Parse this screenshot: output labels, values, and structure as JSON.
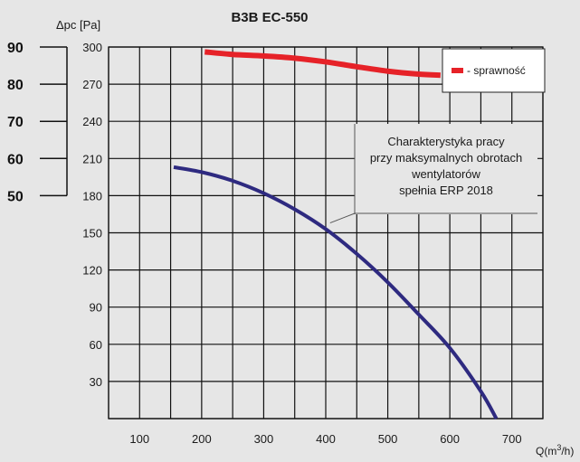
{
  "chart_data": {
    "type": "line",
    "title": "B3B EC-550",
    "ylabel": "Δpc [Pa]",
    "xlabel": "Q(m³/h)",
    "x_ticks": [
      100,
      200,
      300,
      400,
      500,
      600,
      700
    ],
    "y_ticks": [
      30,
      60,
      90,
      120,
      150,
      180,
      210,
      240,
      270,
      300
    ],
    "xlim": [
      50,
      750
    ],
    "ylim": [
      0,
      300
    ],
    "grid": true,
    "secondary_axis": {
      "ticks": [
        50,
        60,
        70,
        80,
        90
      ],
      "range": [
        50,
        90
      ],
      "maps_to_primary": [
        180,
        300
      ]
    },
    "series": [
      {
        "role": "pressure_curve",
        "color": "#2e2a80",
        "axis": "primary",
        "points": [
          [
            155,
            203
          ],
          [
            200,
            199
          ],
          [
            250,
            192
          ],
          [
            300,
            182
          ],
          [
            350,
            169
          ],
          [
            400,
            153
          ],
          [
            450,
            133
          ],
          [
            500,
            110
          ],
          [
            550,
            84
          ],
          [
            600,
            57
          ],
          [
            650,
            22
          ],
          [
            675,
            0
          ]
        ]
      },
      {
        "name": "- sprawność",
        "color": "#e62228",
        "axis": "secondary",
        "points": [
          [
            205,
            88.7
          ],
          [
            250,
            88
          ],
          [
            300,
            87.6
          ],
          [
            350,
            87
          ],
          [
            400,
            86
          ],
          [
            450,
            84.7
          ],
          [
            500,
            83.5
          ],
          [
            550,
            82.7
          ],
          [
            585,
            82.4
          ]
        ]
      }
    ],
    "annotation": {
      "text": [
        "Charakterystyka pracy",
        "przy maksymalnych obrotach",
        "wentylatorów",
        "spełnia ERP 2018"
      ],
      "points_to": [
        407,
        158
      ]
    },
    "legend_placement": "top-right"
  }
}
